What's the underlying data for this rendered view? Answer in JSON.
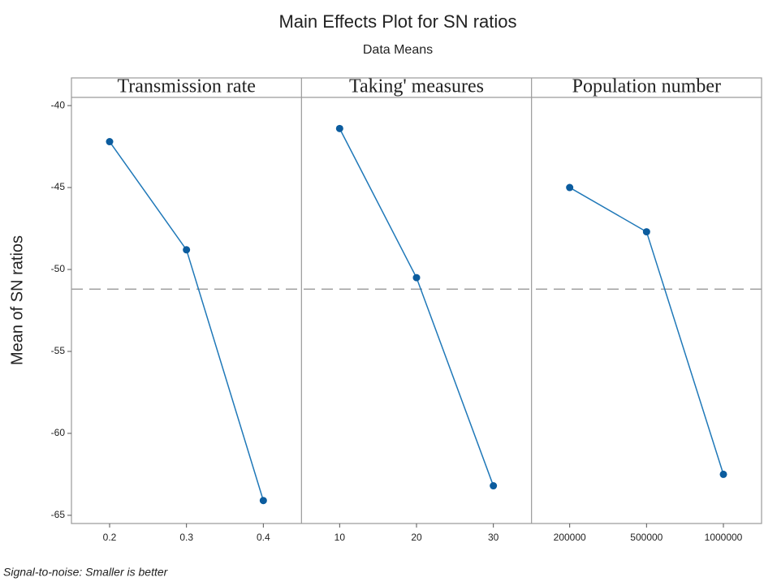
{
  "chart_data": {
    "type": "line",
    "title": "Main Effects Plot for SN ratios",
    "subtitle": "Data Means",
    "ylabel": "Mean of SN ratios",
    "footnote": "Signal-to-noise: Smaller is better",
    "color": "#1f78b8",
    "marker_color": "#0b5c9e",
    "reference_line": -51.2,
    "ylim": [
      -65.5,
      -39.5
    ],
    "yticks": [
      -40,
      -45,
      -50,
      -55,
      -60,
      -65
    ],
    "series": [
      {
        "name": "Transmission rate",
        "categories": [
          "0.2",
          "0.3",
          "0.4"
        ],
        "values": [
          -42.2,
          -48.8,
          -64.1
        ]
      },
      {
        "name": "Taking' measures",
        "categories": [
          "10",
          "20",
          "30"
        ],
        "values": [
          -41.4,
          -50.5,
          -63.2
        ]
      },
      {
        "name": "Population number",
        "categories": [
          "200000",
          "500000",
          "1000000"
        ],
        "values": [
          -45.0,
          -47.7,
          -62.5
        ]
      }
    ]
  }
}
